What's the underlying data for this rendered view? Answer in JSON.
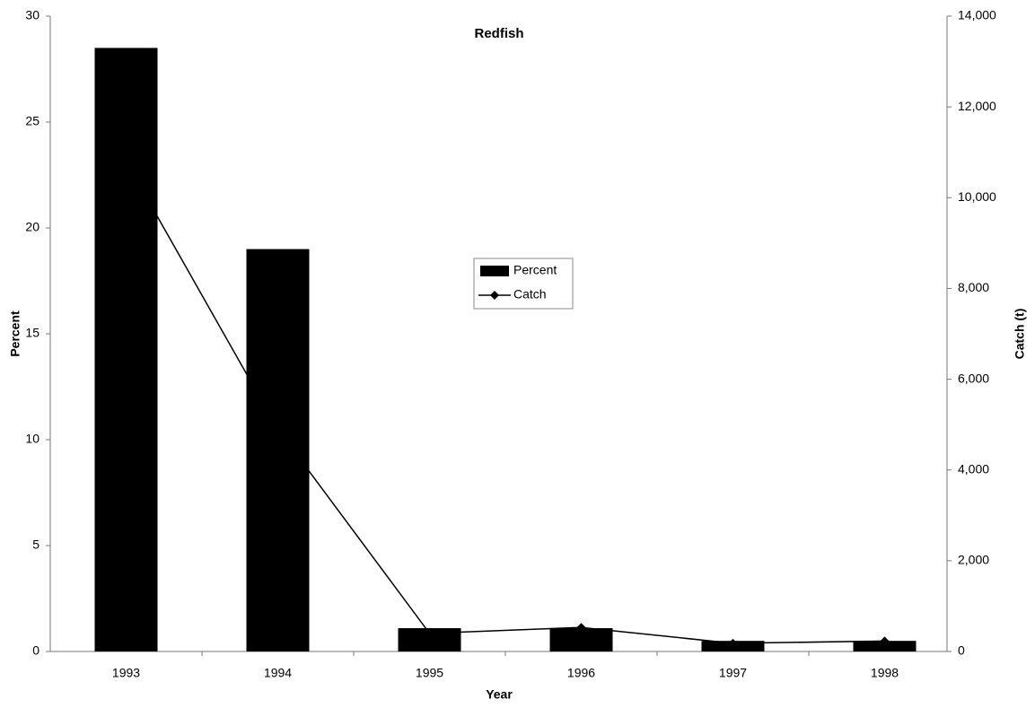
{
  "chart_data": {
    "type": "bar-line",
    "title": "Redfish",
    "x_label": "Year",
    "y_label": "Percent",
    "y2_label": "Catch (t)",
    "categories": [
      "1993",
      "1994",
      "1995",
      "1996",
      "1997",
      "1998"
    ],
    "series": [
      {
        "name": "Percent",
        "type": "bar",
        "color": "#000000",
        "values": [
          28.5,
          19,
          1.1,
          1.1,
          0.5,
          0.5
        ]
      },
      {
        "name": "Catch",
        "type": "line",
        "axis": "y2",
        "color": "#000000",
        "values": [
          10800,
          4900,
          400,
          530,
          180,
          230
        ]
      }
    ],
    "ylim": [
      0,
      30
    ],
    "yticks": [
      0,
      5,
      10,
      15,
      20,
      25,
      30
    ],
    "y2lim": [
      0,
      14000
    ],
    "y2ticks": [
      0,
      {
        "value": 2000,
        "label": "2,000"
      },
      {
        "value": 4000,
        "label": "4,000"
      },
      {
        "value": 6000,
        "label": "6,000"
      },
      {
        "value": 8000,
        "label": "8,000"
      },
      {
        "value": 10000,
        "label": "10,000"
      },
      {
        "value": 12000,
        "label": "12,000"
      },
      {
        "value": 14000,
        "label": "14,000"
      }
    ],
    "grid": false
  }
}
